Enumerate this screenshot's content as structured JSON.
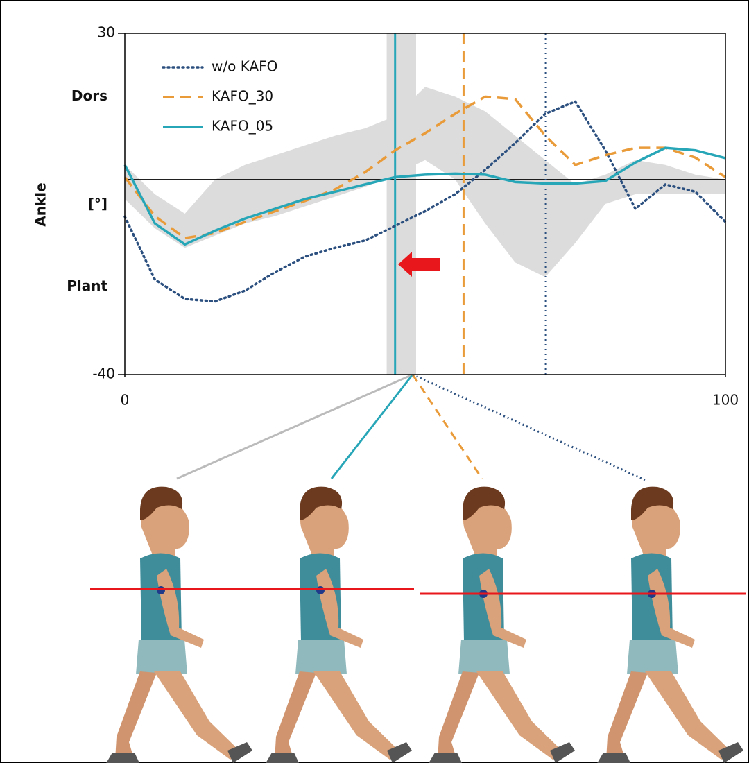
{
  "chart_data": {
    "type": "line",
    "y_label": "Ankle",
    "y_unit": "[°]",
    "y_annotations": [
      {
        "value": 17,
        "label": "Dors"
      },
      {
        "value": -22,
        "label": "Plant"
      }
    ],
    "x": [
      0,
      5,
      10,
      15,
      20,
      25,
      30,
      35,
      40,
      45,
      50,
      55,
      60,
      65,
      70,
      75,
      80,
      85,
      90,
      95,
      100
    ],
    "series": [
      {
        "name": "w/o KAFO",
        "color": "#2b4f7e",
        "dash": "dotted",
        "values": [
          -7.6,
          -20.5,
          -24.5,
          -25,
          -22.8,
          -19,
          -15.8,
          -14,
          -12.5,
          -9.5,
          -6.5,
          -3,
          2,
          7.5,
          13.5,
          16,
          6,
          -6,
          -1,
          -2.5,
          -8.7
        ]
      },
      {
        "name": "KAFO_30",
        "color": "#e99b3a",
        "dash": "dashed",
        "values": [
          0.5,
          -7.5,
          -12,
          -11,
          -8.7,
          -6.5,
          -4.4,
          -2,
          1.5,
          6,
          9.5,
          13.5,
          17,
          16.5,
          9,
          3,
          5,
          6.5,
          6.5,
          4.5,
          0.5
        ]
      },
      {
        "name": "KAFO_05",
        "color": "#27a6b8",
        "dash": "solid",
        "values": [
          3,
          -9,
          -13.3,
          -10.5,
          -8,
          -6,
          -4,
          -2.5,
          -1,
          0.5,
          1,
          1.2,
          1,
          -0.5,
          -0.8,
          -0.8,
          -0.3,
          3.5,
          6.5,
          6,
          4.4
        ]
      }
    ],
    "band": {
      "color": "#dcdcdc",
      "upper": [
        3,
        -3,
        -7,
        0,
        3,
        5,
        7,
        9,
        10.5,
        13,
        19,
        17,
        14,
        9,
        4,
        -1,
        1,
        4,
        3,
        1,
        0
      ],
      "lower": [
        -4,
        -10,
        -14,
        -11.5,
        -9,
        -7.5,
        -5.5,
        -3.5,
        -1.5,
        1,
        4,
        0,
        -9,
        -17,
        -20,
        -13,
        -5,
        -3,
        -3,
        -3,
        -3
      ]
    },
    "normal_event_range": [
      43.6,
      48.5
    ],
    "events": [
      {
        "series": 0,
        "x": 70.1
      },
      {
        "series": 1,
        "x": 56.4
      },
      {
        "series": 2,
        "x": 45
      }
    ],
    "xlim": [
      0,
      100
    ],
    "xticks": [
      0,
      100
    ],
    "ylim": [
      -40,
      30
    ],
    "yticks": [
      -40,
      30
    ],
    "zero_line": 0
  }
}
